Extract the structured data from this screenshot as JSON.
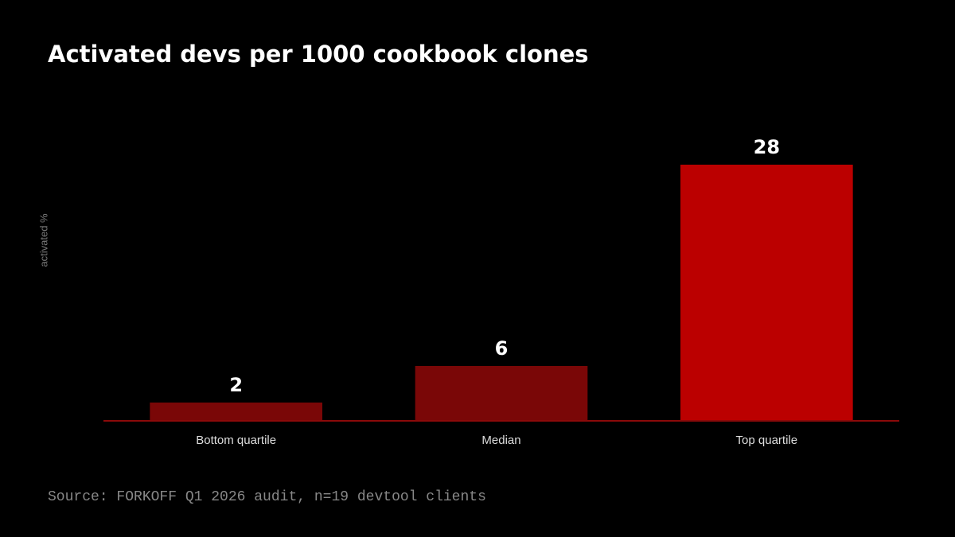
{
  "chart_data": {
    "type": "bar",
    "title": "Activated devs per 1000 cookbook clones",
    "y_label": "activated %",
    "categories": [
      "Bottom quartile",
      "Median",
      "Top quartile"
    ],
    "values": [
      2,
      6,
      28
    ],
    "colors": [
      "#7a0707",
      "#7a0707",
      "#bb0000"
    ],
    "ylim": [
      0,
      28
    ],
    "source": "Source: FORKOFF Q1 2026 audit, n=19 devtool clients"
  }
}
